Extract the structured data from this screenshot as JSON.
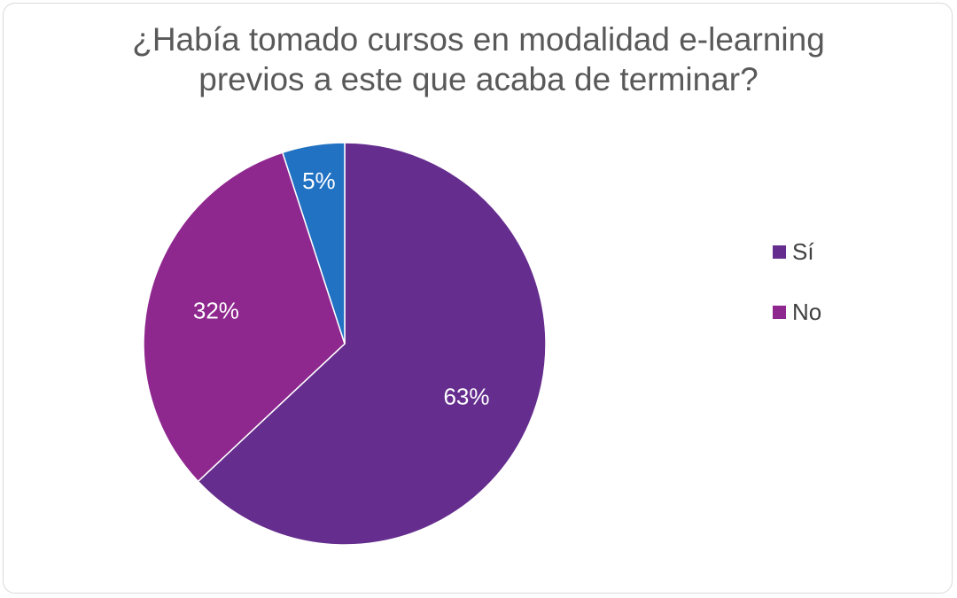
{
  "chart_data": {
    "type": "pie",
    "title": "¿Había tomado cursos en modalidad e-learning previos a este que acaba de terminar?",
    "title_lines": [
      "¿Había tomado cursos en modalidad e-learning",
      "previos a este que acaba de terminar?"
    ],
    "slices": [
      {
        "label": "Sí",
        "value": 63,
        "data_label": "63%",
        "color": "#652d8e",
        "in_legend": true
      },
      {
        "label": "No",
        "value": 32,
        "data_label": "32%",
        "color": "#8e278e",
        "in_legend": true
      },
      {
        "label": "",
        "value": 5,
        "data_label": "5%",
        "color": "#2272c3",
        "in_legend": false
      }
    ],
    "legend_position": "right",
    "data_label_color": "#ffffff"
  }
}
